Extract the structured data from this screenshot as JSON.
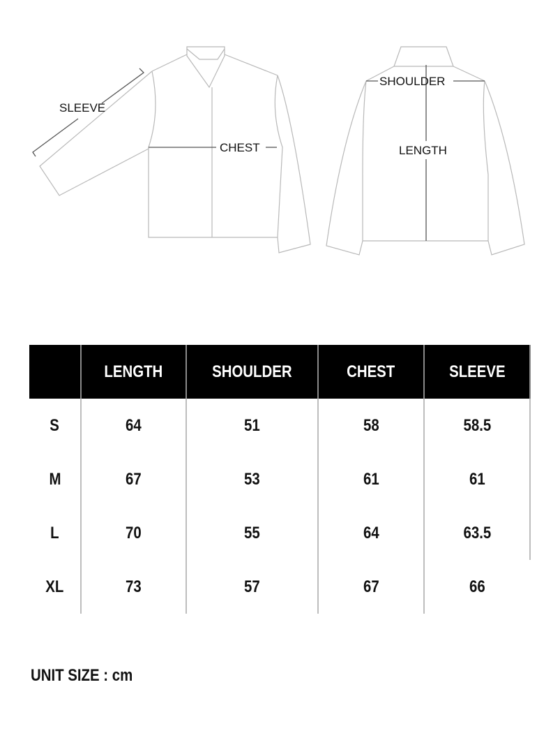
{
  "diagram": {
    "front_labels": {
      "sleeve": "SLEEVE",
      "chest": "CHEST"
    },
    "back_labels": {
      "shoulder": "SHOULDER",
      "length": "LENGTH"
    }
  },
  "table": {
    "headers": [
      "",
      "LENGTH",
      "SHOULDER",
      "CHEST",
      "SLEEVE"
    ],
    "rows": [
      [
        "S",
        "64",
        "51",
        "58",
        "58.5"
      ],
      [
        "M",
        "67",
        "53",
        "61",
        "61"
      ],
      [
        "L",
        "70",
        "55",
        "64",
        "63.5"
      ],
      [
        "XL",
        "73",
        "57",
        "67",
        "66"
      ]
    ]
  },
  "unit_note": "UNIT SIZE : cm"
}
